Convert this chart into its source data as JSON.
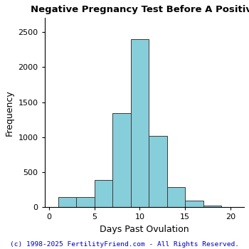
{
  "title": "Negative Pregnancy Test Before A Positive",
  "xlabel": "Days Past Ovulation",
  "ylabel": "Frequency",
  "bar_color": "#87CEDB",
  "bar_edge_color": "#3a3a3a",
  "background_color": "#ffffff",
  "xlim": [
    -0.5,
    21.5
  ],
  "ylim": [
    0,
    2700
  ],
  "xticks": [
    0,
    5,
    10,
    15,
    20
  ],
  "yticks": [
    0,
    500,
    1000,
    1500,
    2000,
    2500
  ],
  "bin_left": [
    1,
    3,
    5,
    7,
    9,
    11,
    13,
    15,
    17
  ],
  "bin_width": 2,
  "bar_heights": [
    150,
    150,
    390,
    1340,
    2400,
    1020,
    290,
    95,
    30
  ],
  "footnote": "(c) 1998-2025 FertilityFriend.com - All Rights Reserved.",
  "footnote_color": "#0000bb",
  "title_fontsize": 9.5,
  "label_fontsize": 9,
  "tick_fontsize": 8,
  "footnote_fontsize": 6.8
}
